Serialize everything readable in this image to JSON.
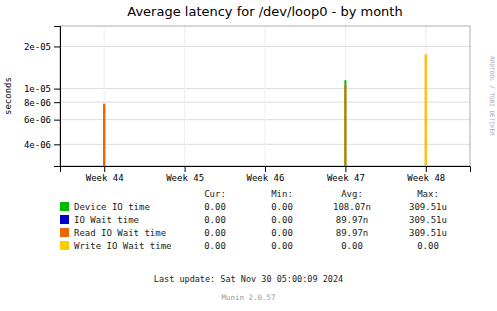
{
  "chart_data": {
    "type": "bar",
    "title": "Average latency for /dev/loop0 - by month",
    "y_label": "seconds",
    "categories": [
      "Week 44",
      "Week 45",
      "Week 46",
      "Week 47",
      "Week 48"
    ],
    "series": [
      {
        "name": "Device IO time",
        "color": "#00bb00",
        "values": [
          7.8e-06,
          null,
          null,
          1.15e-05,
          null
        ],
        "stats": [
          "0.00",
          "0.00",
          "108.07n",
          "309.51u"
        ]
      },
      {
        "name": "IO Wait time",
        "color": "#0000cc",
        "values": [
          null,
          null,
          null,
          null,
          null
        ],
        "stats": [
          "0.00",
          "0.00",
          "89.97n",
          "309.51u"
        ]
      },
      {
        "name": "Read IO Wait time",
        "color": "#ee6600",
        "values": [
          7.75e-06,
          null,
          null,
          1.05e-05,
          1.75e-05
        ],
        "stats": [
          "0.00",
          "0.00",
          "89.97n",
          "309.51u"
        ]
      },
      {
        "name": "Write IO Wait time",
        "color": "#ffcc00",
        "values": [
          null,
          null,
          null,
          null,
          1.75e-05
        ],
        "stats": [
          "0.00",
          "0.00",
          "0.00",
          "0.00"
        ]
      }
    ],
    "stats_labels": [
      "Cur:",
      "Min:",
      "Avg:",
      "Max:"
    ],
    "log": "y",
    "ylim": [
      2.8e-06,
      2.8e-05
    ],
    "yticks": [
      {
        "value": 4e-06,
        "label": "4e-06"
      },
      {
        "value": 6e-06,
        "label": "6e-06"
      },
      {
        "value": 8e-06,
        "label": "8e-06"
      },
      {
        "value": 1e-05,
        "label": "1e-05"
      },
      {
        "value": 2e-05,
        "label": "2e-05"
      }
    ],
    "stacked": false,
    "grid": true,
    "legend": "bottom",
    "annotations": [
      "Last update: Sat Nov 30 05:00:09 2024",
      "Munin 2.0.57",
      "RRDTOOL / TOBI OETIKER"
    ]
  }
}
